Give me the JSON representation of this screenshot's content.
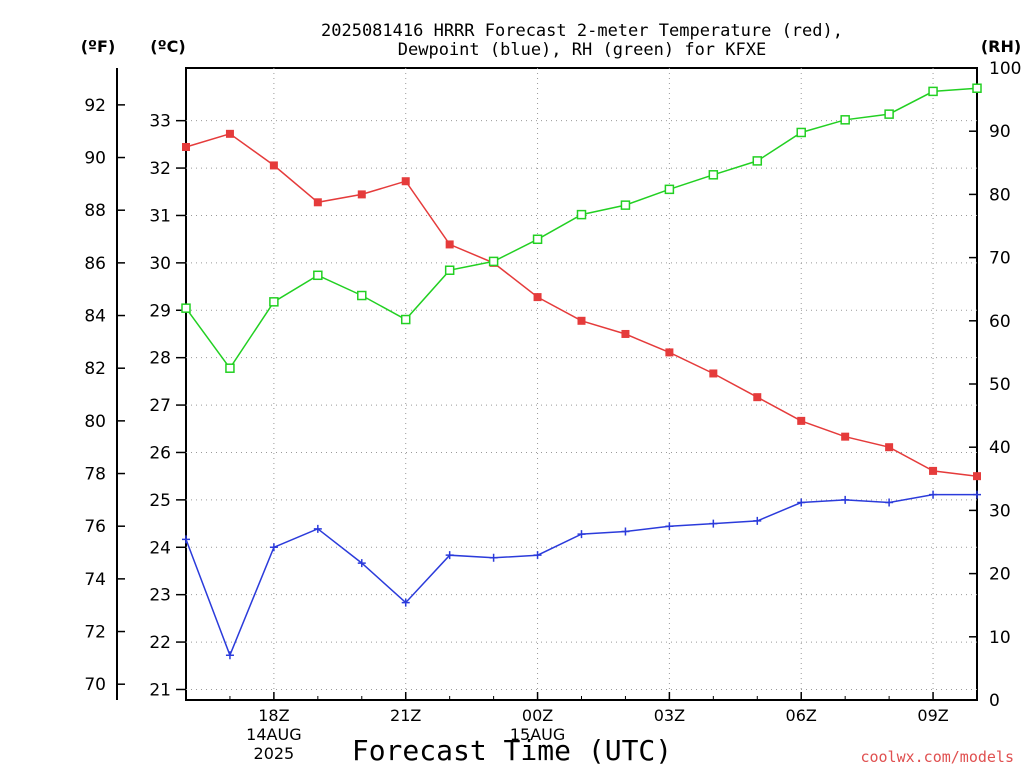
{
  "chart_data": {
    "type": "line",
    "title_line1": "2025081416 HRRR Forecast 2-meter Temperature (red),",
    "title_line2": "Dewpoint (blue), RH (green) for KFXE",
    "unit_f": "(ºF)",
    "unit_c": "(ºC)",
    "unit_rh": "(RH)",
    "xlabel": "Forecast Time (UTC)",
    "watermark": "coolwx.com/models",
    "x_hours": [
      16,
      17,
      18,
      19,
      20,
      21,
      22,
      23,
      24,
      25,
      26,
      27,
      28,
      29,
      30,
      31,
      32,
      33,
      34
    ],
    "x_ticks": [
      {
        "hour": 18,
        "label": "18Z",
        "sub1": "14AUG",
        "sub2": "2025"
      },
      {
        "hour": 21,
        "label": "21Z",
        "sub1": "",
        "sub2": ""
      },
      {
        "hour": 24,
        "label": "00Z",
        "sub1": "15AUG",
        "sub2": ""
      },
      {
        "hour": 27,
        "label": "03Z",
        "sub1": "",
        "sub2": ""
      },
      {
        "hour": 30,
        "label": "06Z",
        "sub1": "",
        "sub2": ""
      },
      {
        "hour": 33,
        "label": "09Z",
        "sub1": "",
        "sub2": ""
      }
    ],
    "yaxis_c_ticks": [
      "21",
      "22",
      "23",
      "24",
      "25",
      "26",
      "27",
      "28",
      "29",
      "30",
      "31",
      "32",
      "33"
    ],
    "yaxis_f_ticks": [
      "70",
      "72",
      "74",
      "76",
      "78",
      "80",
      "82",
      "84",
      "86",
      "88",
      "90",
      "92"
    ],
    "yaxis_rh_ticks": [
      "0",
      "10",
      "20",
      "30",
      "40",
      "50",
      "60",
      "70",
      "80",
      "90",
      "100"
    ],
    "ylim_f": [
      69.4,
      93.4
    ],
    "ylim_rh": [
      0,
      100
    ],
    "grid": true,
    "series": [
      {
        "name": "Temperature",
        "axis": "F",
        "color": "#e53b3b",
        "marker": "filled-square",
        "values": [
          90.4,
          90.9,
          89.7,
          88.3,
          88.6,
          89.1,
          86.7,
          86.0,
          84.7,
          83.8,
          83.3,
          82.6,
          81.8,
          80.9,
          80.0,
          79.4,
          79.0,
          78.1,
          77.9
        ]
      },
      {
        "name": "Dewpoint",
        "axis": "F",
        "color": "#2b3bdb",
        "marker": "plus",
        "values": [
          75.5,
          71.1,
          75.2,
          75.9,
          74.6,
          73.1,
          74.9,
          74.8,
          74.9,
          75.7,
          75.8,
          76.0,
          76.1,
          76.2,
          76.9,
          77.0,
          76.9,
          77.2,
          77.2
        ]
      },
      {
        "name": "RH",
        "axis": "RH",
        "color": "#22d022",
        "marker": "open-square",
        "values": [
          62,
          52.5,
          63,
          67.2,
          64,
          60.2,
          68,
          69.4,
          72.9,
          76.8,
          78.3,
          80.8,
          83.1,
          85.3,
          89.8,
          91.8,
          92.7,
          96.3,
          96.8
        ]
      }
    ]
  }
}
